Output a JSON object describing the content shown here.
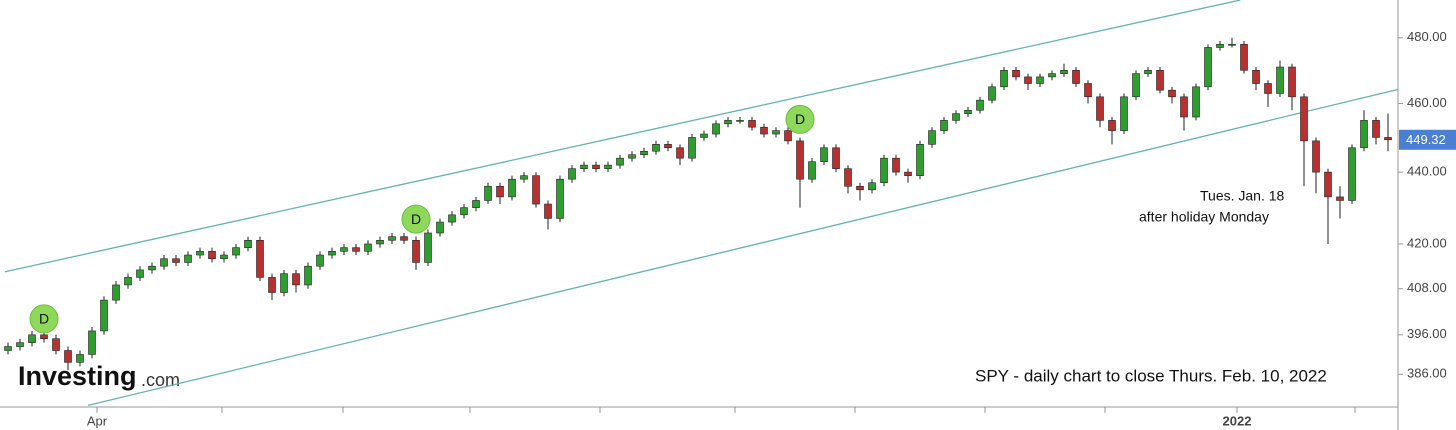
{
  "chart_data": {
    "type": "candlestick",
    "title": "SPY - daily chart to close Thurs. Feb. 10, 2022",
    "logo": {
      "brand": "Investing",
      "suffix": ".com"
    },
    "annotation": [
      "Tues. Jan. 18",
      "after holiday Monday"
    ],
    "log_scale": true,
    "ylim": [
      378.4,
      491.9
    ],
    "yticks": [
      {
        "value": 480,
        "label": "480.00"
      },
      {
        "value": 460,
        "label": "460.00"
      },
      {
        "value": 440,
        "label": "440.00"
      },
      {
        "value": 420,
        "label": "420.00"
      },
      {
        "value": 408,
        "label": "408.00"
      },
      {
        "value": 396,
        "label": "396.00"
      },
      {
        "value": 386,
        "label": "386.00"
      }
    ],
    "last_price": 449.32,
    "up_color": "#2e9e2e",
    "down_color": "#b83030",
    "line_color": "#62b3b3",
    "categories": [
      null,
      null,
      null,
      null,
      null,
      null,
      null,
      "Apr",
      null,
      null,
      null,
      null,
      null,
      null,
      null,
      null,
      null,
      null,
      null,
      null,
      null,
      null,
      null,
      null,
      null,
      null,
      null,
      null,
      null,
      null,
      null,
      null,
      null,
      null,
      null,
      null,
      null,
      null,
      null,
      null,
      null,
      null,
      null,
      null,
      null,
      null,
      null,
      null,
      null,
      null,
      null,
      null,
      null,
      null,
      null,
      null,
      null,
      null,
      null,
      null,
      null,
      null,
      null,
      null,
      null,
      null,
      null,
      null,
      null,
      null,
      null,
      null,
      null,
      null,
      null,
      null,
      null,
      null,
      null,
      null,
      null,
      null,
      null,
      null,
      null,
      null,
      null,
      null,
      null,
      null,
      null,
      null,
      null,
      null,
      null,
      null,
      null,
      null,
      null,
      null,
      null,
      null,
      "2022",
      null,
      null,
      null,
      null,
      null,
      null,
      null,
      null,
      null,
      null,
      null,
      null,
      null
    ],
    "open": [
      392,
      393,
      394,
      396,
      395,
      392,
      389,
      391,
      397,
      405,
      409,
      411,
      413,
      414,
      416,
      415,
      417,
      418,
      416,
      417,
      419,
      421,
      411,
      407,
      412,
      409,
      414,
      417,
      418,
      419,
      418,
      420,
      421,
      422,
      421,
      415,
      423,
      426,
      428,
      430,
      432,
      436,
      433,
      438,
      439,
      431,
      427,
      438,
      441,
      442,
      441,
      442,
      444,
      445,
      446,
      448,
      447,
      444,
      450,
      451,
      454,
      455,
      455,
      453,
      451,
      452,
      449,
      438,
      443,
      447,
      441,
      436,
      435,
      437,
      444,
      440,
      439,
      448,
      452,
      455,
      457,
      458,
      461,
      465,
      470,
      468,
      466,
      468,
      469,
      470,
      466,
      462,
      455,
      452,
      462,
      469,
      470,
      464,
      462,
      456,
      465,
      477,
      478,
      478,
      470,
      466,
      463,
      471,
      462,
      449,
      440,
      433,
      432,
      447,
      455,
      450
    ],
    "close": [
      393,
      394,
      396,
      395,
      392,
      389,
      391,
      397,
      405,
      409,
      411,
      413,
      414,
      416,
      415,
      417,
      418,
      416,
      417,
      419,
      421,
      411,
      407,
      412,
      409,
      414,
      417,
      418,
      419,
      418,
      420,
      421,
      422,
      421,
      415,
      423,
      426,
      428,
      430,
      432,
      436,
      433,
      438,
      439,
      431,
      427,
      438,
      441,
      442,
      441,
      442,
      444,
      445,
      446,
      448,
      447,
      444,
      450,
      451,
      454,
      455,
      455,
      453,
      451,
      452,
      449,
      438,
      443,
      447,
      441,
      436,
      435,
      437,
      444,
      440,
      439,
      448,
      452,
      455,
      457,
      458,
      461,
      465,
      470,
      468,
      466,
      468,
      469,
      470,
      466,
      462,
      455,
      452,
      462,
      469,
      470,
      464,
      462,
      456,
      465,
      477,
      478,
      478,
      470,
      466,
      463,
      471,
      462,
      449,
      440,
      433,
      432,
      447,
      455,
      450,
      449.32
    ],
    "high": [
      394,
      395,
      397,
      397,
      396,
      393,
      392,
      398,
      406,
      410,
      412,
      414,
      415,
      417,
      417,
      418,
      419,
      419,
      418,
      420,
      422,
      422,
      412,
      413,
      413,
      415,
      418,
      419,
      420,
      420,
      421,
      422,
      423,
      423,
      422,
      424,
      427,
      429,
      431,
      433,
      437,
      437,
      439,
      440,
      440,
      432,
      439,
      442,
      443,
      443,
      443,
      445,
      446,
      447,
      449,
      449,
      448,
      451,
      452,
      455,
      456,
      456,
      456,
      454,
      453,
      453,
      450,
      444,
      448,
      448,
      442,
      437,
      438,
      445,
      445,
      441,
      449,
      453,
      456,
      458,
      459,
      462,
      466,
      471,
      471,
      469,
      469,
      470,
      472,
      471,
      467,
      463,
      456,
      463,
      470,
      471,
      471,
      465,
      463,
      466,
      478,
      479,
      480,
      479,
      471,
      467,
      473,
      472,
      463,
      450,
      441,
      436,
      448,
      458,
      456,
      457
    ],
    "low": [
      391,
      392,
      393,
      394,
      391,
      387,
      388,
      390,
      396,
      404,
      408,
      410,
      412,
      413,
      414,
      414,
      416,
      415,
      415,
      416,
      418,
      410,
      405,
      406,
      407,
      408,
      413,
      416,
      417,
      417,
      417,
      419,
      420,
      420,
      413,
      414,
      422,
      425,
      427,
      429,
      431,
      431,
      432,
      437,
      430,
      424,
      426,
      437,
      440,
      440,
      440,
      441,
      443,
      444,
      445,
      446,
      442,
      443,
      449,
      450,
      453,
      454,
      452,
      450,
      450,
      448,
      430,
      437,
      442,
      440,
      434,
      432,
      434,
      436,
      439,
      437,
      438,
      447,
      451,
      454,
      456,
      457,
      460,
      464,
      467,
      464,
      465,
      467,
      468,
      465,
      460,
      453,
      448,
      451,
      461,
      468,
      463,
      460,
      452,
      455,
      464,
      476,
      477,
      469,
      464,
      459,
      462,
      458,
      436,
      434,
      420,
      427,
      431,
      446,
      448,
      446
    ],
    "markers": [
      {
        "index": 3,
        "price": 400.1,
        "label": "D"
      },
      {
        "index": 34,
        "price": 426.8,
        "label": "D"
      },
      {
        "index": 66,
        "price": 455.3,
        "label": "D"
      }
    ],
    "trendlines": [
      {
        "x": [
          -0.25,
          102.7
        ],
        "y": [
          412.5,
          491.9
        ]
      },
      {
        "x": [
          6.67,
          115.8
        ],
        "y": [
          378.3,
          464.2
        ]
      }
    ]
  }
}
